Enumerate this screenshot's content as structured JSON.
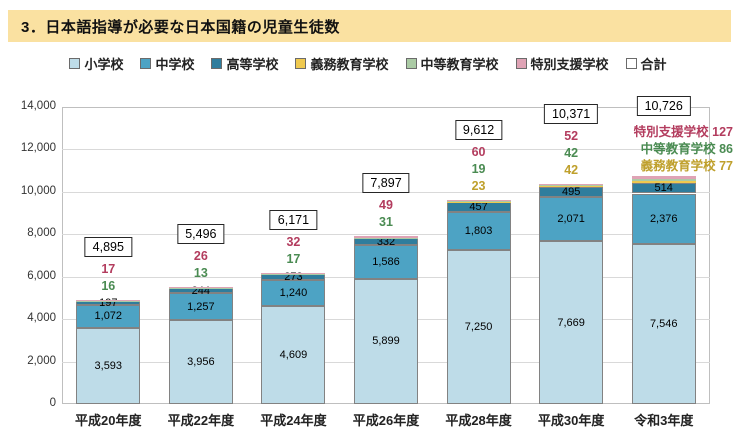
{
  "title": "3．日本語指導が必要な日本国籍の児童生徒数",
  "colors": {
    "banner_bg": "#FAE1A1",
    "gridline": "#D9D9D9",
    "plot_border": "#BFBFBF",
    "segment_border": "#828282",
    "total_box_border": "#262626"
  },
  "legend": {
    "items": [
      {
        "label": "小学校",
        "color": "#BEDCE8"
      },
      {
        "label": "中学校",
        "color": "#4DA3C4"
      },
      {
        "label": "高等学校",
        "color": "#2F7D9D"
      },
      {
        "label": "義務教育学校",
        "color": "#EFC94F"
      },
      {
        "label": "中等教育学校",
        "color": "#ABCBA5"
      },
      {
        "label": "特別支援学校",
        "color": "#DFA3B5"
      },
      {
        "label": "合計",
        "color": "#FFFFFF"
      }
    ]
  },
  "chart_data": {
    "type": "bar",
    "stacked": true,
    "title": "3．日本語指導が必要な日本国籍の児童生徒数",
    "categories": [
      "平成20年度",
      "平成22年度",
      "平成24年度",
      "平成26年度",
      "平成28年度",
      "平成30年度",
      "令和3年度"
    ],
    "series": [
      {
        "name": "小学校",
        "key": "elementary-school",
        "color": "#BEDCE8",
        "label_in_bar": true,
        "values": [
          3593,
          3956,
          4609,
          5899,
          7250,
          7669,
          7546
        ]
      },
      {
        "name": "中学校",
        "key": "junior-high-school",
        "color": "#4DA3C4",
        "label_in_bar": true,
        "values": [
          1072,
          1257,
          1240,
          1586,
          1803,
          2071,
          2376
        ]
      },
      {
        "name": "高等学校",
        "key": "high-school",
        "color": "#2F7D9D",
        "label_in_bar": true,
        "values": [
          197,
          244,
          273,
          332,
          457,
          495,
          514
        ]
      },
      {
        "name": "義務教育学校",
        "key": "compulsory-education-school",
        "color": "#EFC94F",
        "label_color": "#BFA02C",
        "values": [
          null,
          null,
          null,
          null,
          23,
          42,
          77
        ]
      },
      {
        "name": "中等教育学校",
        "key": "secondary-education-school",
        "color": "#ABCBA5",
        "label_color": "#4A8B52",
        "values": [
          16,
          13,
          17,
          31,
          19,
          42,
          86
        ]
      },
      {
        "name": "特別支援学校",
        "key": "special-needs-school",
        "color": "#DFA3B5",
        "label_color": "#B33C5E",
        "values": [
          17,
          26,
          32,
          49,
          60,
          52,
          127
        ]
      }
    ],
    "totals": [
      4895,
      5496,
      6171,
      7897,
      9612,
      10371,
      10726
    ],
    "totals_label": "合計",
    "named_labels_last_bar": true,
    "xlabel": "",
    "ylabel": "",
    "ylim": [
      0,
      14000
    ],
    "ytick_step": 2000,
    "grid": true,
    "legend_position": "top"
  }
}
